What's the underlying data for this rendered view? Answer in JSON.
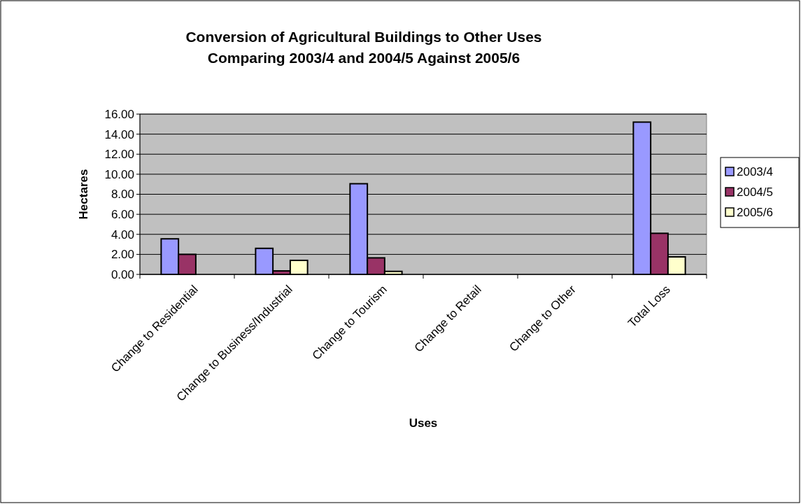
{
  "chart_data": {
    "type": "bar",
    "title": "Conversion of Agricultural Buildings to Other Uses Comparing 2003/4 and 2004/5 Against 2005/6",
    "xlabel": "Uses",
    "ylabel": "Hectares",
    "categories": [
      "Change to Residential",
      "Change to Business/Industrial",
      "Change to Tourism",
      "Change to Retail",
      "Change to Other",
      "Total Loss"
    ],
    "series": [
      {
        "name": "2003/4",
        "color": "#9999ff",
        "values": [
          3.55,
          2.6,
          9.05,
          null,
          0,
          15.2
        ]
      },
      {
        "name": "2004/5",
        "color": "#993366",
        "values": [
          2.0,
          0.35,
          1.65,
          null,
          0,
          4.1
        ]
      },
      {
        "name": "2005/6",
        "color": "#ffffcc",
        "values": [
          null,
          1.4,
          0.3,
          null,
          0,
          1.75
        ]
      }
    ],
    "ylim": [
      0,
      16
    ],
    "yticks": [
      {
        "value": 0,
        "label": "0.00"
      },
      {
        "value": 2,
        "label": "2.00"
      },
      {
        "value": 4,
        "label": "4.00"
      },
      {
        "value": 6,
        "label": "6.00"
      },
      {
        "value": 8,
        "label": "8.00"
      },
      {
        "value": 10,
        "label": "10.00"
      },
      {
        "value": 12,
        "label": "12.00"
      },
      {
        "value": 14,
        "label": "14.00"
      },
      {
        "value": 16,
        "label": "16.00"
      }
    ],
    "grid": "y",
    "legend": "right"
  }
}
